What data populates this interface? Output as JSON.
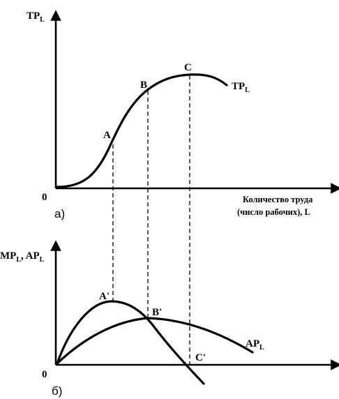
{
  "top_panel": {
    "y_axis_label": "TP",
    "y_axis_sub": "L",
    "origin_label": "0",
    "x_axis_label_line1": "Количество труда",
    "x_axis_label_line2": "(число рабочих), L",
    "panel_label": "а)",
    "curve_label": "TP",
    "curve_label_sub": "L",
    "point_a": "A",
    "point_b": "B",
    "point_c": "C"
  },
  "bottom_panel": {
    "y_axis_label": "MP",
    "y_axis_sub1": "L",
    "y_axis_sep": ", AP",
    "y_axis_sub2": "L",
    "origin_label": "0",
    "panel_label": "б)",
    "ap_label": "AP",
    "ap_label_sub": "L",
    "point_a": "A'",
    "point_b": "B'",
    "point_c": "C'"
  }
}
